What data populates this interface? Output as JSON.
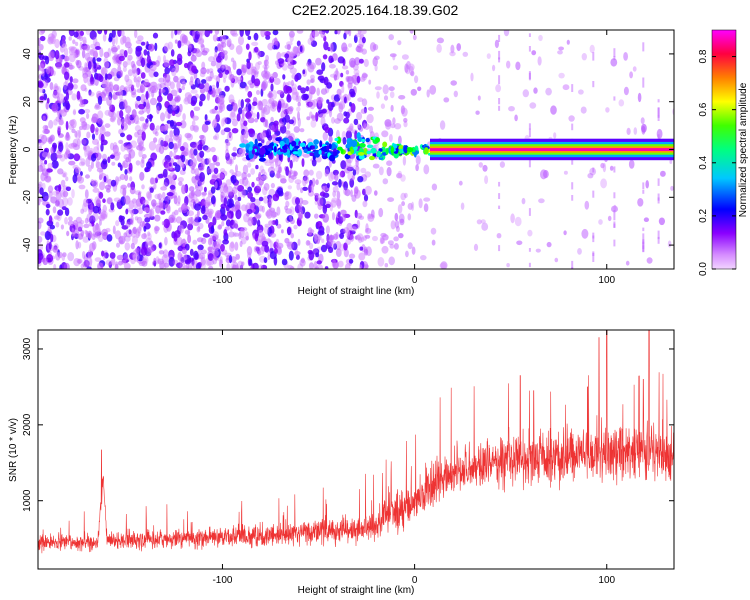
{
  "title": "C2E2.2025.164.18.39.G02",
  "chart_data": [
    {
      "type": "heatmap",
      "name": "spectrogram",
      "xlabel": "Height of straight line (km)",
      "ylabel": "Frequency (Hz)",
      "xlim": [
        -196,
        135
      ],
      "ylim": [
        -50,
        50
      ],
      "xticks": [
        -100,
        0,
        100
      ],
      "yticks": [
        -40,
        -20,
        0,
        20,
        40
      ],
      "colorbar": {
        "label": "Normalized spectral amplitude",
        "range": [
          0.0,
          0.9
        ],
        "ticks": [
          0.0,
          0.2,
          0.4,
          0.6,
          0.8
        ],
        "colors": [
          "#e9b3ff",
          "#8a00ff",
          "#0000ff",
          "#00ffff",
          "#00ff00",
          "#ffff00",
          "#ff8000",
          "#ff0040",
          "#ff00ff"
        ]
      },
      "features": [
        {
          "x_range": [
            -196,
            -30
          ],
          "description": "broadband noise (low amplitude, violet speckle)"
        },
        {
          "x_range": [
            -90,
            10
          ],
          "y": 0,
          "amplitude_range": [
            0.1,
            0.5
          ],
          "description": "emerging carrier line"
        },
        {
          "x_range": [
            10,
            135
          ],
          "y": 0,
          "amplitude": 0.85,
          "description": "strong narrow carrier line near 0 Hz"
        }
      ]
    },
    {
      "type": "line",
      "name": "snr",
      "xlabel": "Height of straight line (km)",
      "ylabel": "SNR (10 * v/v)",
      "xlim": [
        -196,
        135
      ],
      "ylim": [
        100,
        3250
      ],
      "xticks": [
        -100,
        0,
        100
      ],
      "yticks": [
        1000,
        2000,
        3000
      ],
      "color": "#ee3333",
      "envelope": {
        "x": [
          -196,
          -180,
          -170,
          -165,
          -162,
          -160,
          -150,
          -120,
          -100,
          -80,
          -60,
          -40,
          -30,
          -20,
          -10,
          0,
          10,
          20,
          40,
          60,
          80,
          100,
          120,
          135
        ],
        "mean": [
          450,
          450,
          460,
          450,
          1300,
          450,
          480,
          500,
          520,
          540,
          570,
          600,
          620,
          700,
          850,
          1000,
          1200,
          1380,
          1500,
          1550,
          1600,
          1650,
          1650,
          1650
        ],
        "spread": [
          160,
          160,
          170,
          170,
          200,
          160,
          190,
          200,
          210,
          220,
          230,
          260,
          280,
          330,
          380,
          420,
          450,
          480,
          500,
          520,
          540,
          560,
          560,
          560
        ]
      },
      "peaks": [
        {
          "x": -163,
          "y": 1670
        },
        {
          "x": 55,
          "y": 2650
        },
        {
          "x": 62,
          "y": 2450
        },
        {
          "x": 90,
          "y": 2500
        },
        {
          "x": 96,
          "y": 3150
        },
        {
          "x": 100,
          "y": 3250
        },
        {
          "x": 119,
          "y": 2600
        },
        {
          "x": 122,
          "y": 3250
        }
      ]
    }
  ]
}
